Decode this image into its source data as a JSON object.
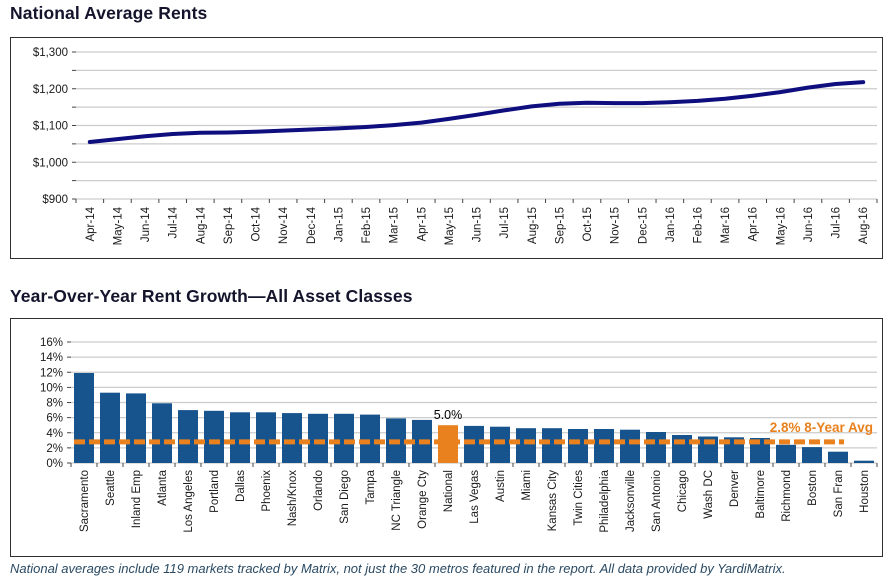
{
  "footer_note": "National averages include 119 markets tracked by Matrix, not just the 30 metros featured in the report. All data provided by YardiMatrix.",
  "colors": {
    "navy_line": "#0e0e7f",
    "bar_blue": "#17548e",
    "accent_orange": "#e8811e",
    "grid": "#cccccc",
    "axis": "#444444",
    "title_text": "#14142c",
    "footer_text": "#2a4a63"
  },
  "chart_data": [
    {
      "type": "line",
      "title": "National Average Rents",
      "x": [
        "Apr-14",
        "May-14",
        "Jun-14",
        "Jul-14",
        "Aug-14",
        "Sep-14",
        "Oct-14",
        "Nov-14",
        "Dec-14",
        "Jan-15",
        "Feb-15",
        "Mar-15",
        "Apr-15",
        "May-15",
        "Jun-15",
        "Jul-15",
        "Aug-15",
        "Sep-15",
        "Oct-15",
        "Nov-15",
        "Dec-15",
        "Jan-16",
        "Feb-16",
        "Mar-16",
        "Apr-16",
        "May-16",
        "Jun-16",
        "Jul-16",
        "Aug-16"
      ],
      "values": [
        1055,
        1063,
        1071,
        1077,
        1080,
        1081,
        1083,
        1086,
        1089,
        1092,
        1096,
        1101,
        1108,
        1118,
        1129,
        1141,
        1152,
        1159,
        1162,
        1161,
        1161,
        1163,
        1167,
        1173,
        1181,
        1191,
        1203,
        1213,
        1218
      ],
      "ylabel": "",
      "xlabel": "",
      "ylim": [
        900,
        1300
      ],
      "ytick_step": 100,
      "grid_step": 50,
      "ytick_labels": [
        "$1,300",
        "$1,200",
        "$1,100",
        "$1,000",
        "$900"
      ],
      "grid": true,
      "legend": "none"
    },
    {
      "type": "bar",
      "title": "Year-Over-Year Rent Growth—All Asset Classes",
      "categories": [
        "Sacramento",
        "Seattle",
        "Inland Emp",
        "Atlanta",
        "Los Angeles",
        "Portland",
        "Dallas",
        "Phoenix",
        "Nash/Knox",
        "Orlando",
        "San Diego",
        "Tampa",
        "NC Triangle",
        "Orange Cty",
        "National",
        "Las Vegas",
        "Austin",
        "Miami",
        "Kansas City",
        "Twin Cities",
        "Philadelphia",
        "Jacksonville",
        "San Antonio",
        "Chicago",
        "Wash DC",
        "Denver",
        "Baltimore",
        "Richmond",
        "Boston",
        "San Fran",
        "Houston"
      ],
      "values": [
        11.9,
        9.3,
        9.2,
        7.9,
        7.0,
        6.9,
        6.7,
        6.7,
        6.6,
        6.5,
        6.5,
        6.4,
        5.9,
        5.7,
        5.0,
        4.9,
        4.8,
        4.6,
        4.6,
        4.5,
        4.5,
        4.4,
        4.1,
        3.7,
        3.5,
        3.4,
        3.3,
        2.4,
        2.1,
        1.5,
        0.3
      ],
      "highlight_category": "National",
      "highlight_label": "5.0%",
      "avg_line": {
        "value": 2.8,
        "label": "2.8% 8-Year Avg"
      },
      "ylabel": "",
      "xlabel": "",
      "ylim": [
        0,
        16
      ],
      "ytick_step": 2,
      "ytick_labels": [
        "16%",
        "14%",
        "12%",
        "10%",
        "8%",
        "6%",
        "4%",
        "2%",
        "0%"
      ],
      "grid": true,
      "legend": "none"
    }
  ]
}
